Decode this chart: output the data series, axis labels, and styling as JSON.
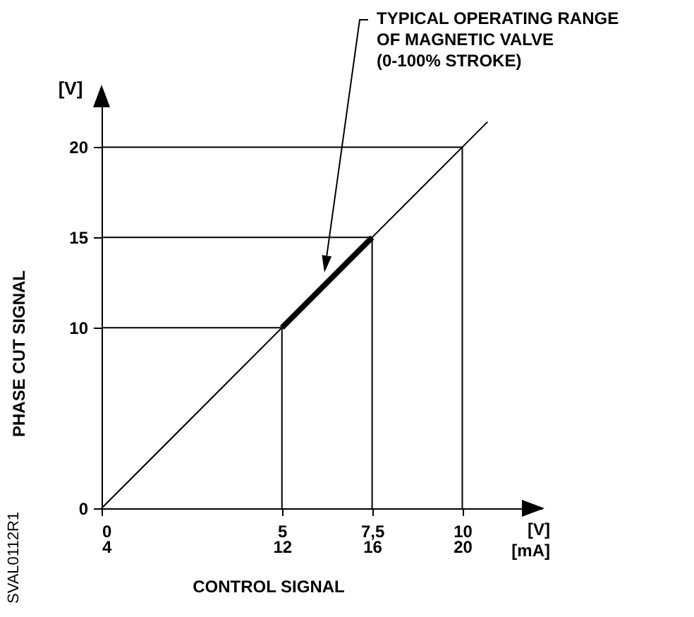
{
  "chart_data": {
    "type": "line",
    "xlabel": "CONTROL SIGNAL",
    "ylabel": "PHASE CUT SIGNAL",
    "xlim": [
      0,
      12.2
    ],
    "ylim": [
      0,
      23.3
    ],
    "xticks": [
      0,
      5,
      {
        "value": 7.5,
        "label": "7,5"
      },
      10
    ],
    "x2lim": [
      4,
      23.52
    ],
    "x2ticks": [
      4,
      12,
      16,
      20
    ],
    "yticks": [
      0,
      10,
      15,
      20
    ],
    "series": [
      {
        "color": "#000000",
        "x": [
          0,
          10.7
        ],
        "values": [
          0,
          21.4
        ]
      },
      {
        "color": "#000000",
        "x": [
          5,
          7.5
        ],
        "values": [
          10,
          15
        ]
      },
      {
        "color": "#000000",
        "x": [
          0,
          5,
          5
        ],
        "values": [
          10,
          10,
          0
        ]
      },
      {
        "color": "#000000",
        "x": [
          0,
          7.5,
          7.5
        ],
        "values": [
          15,
          15,
          0
        ]
      },
      {
        "color": "#000000",
        "x": [
          0,
          10,
          10
        ],
        "values": [
          20,
          20,
          0
        ]
      }
    ],
    "annotations": [
      "[V]",
      "[V]\n[mA]",
      "SVAL0112R1",
      "TYPICAL OPERATING RANGE\nOF MAGNETIC VALVE\n(0-100% STROKE)"
    ]
  }
}
